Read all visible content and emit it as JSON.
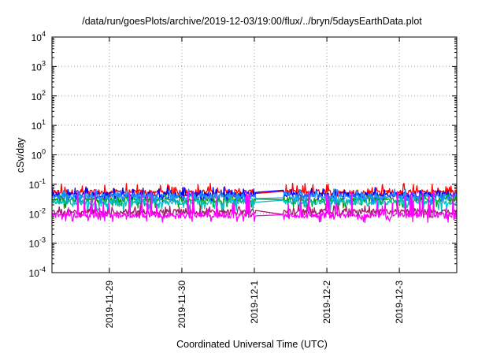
{
  "chart_data": {
    "type": "line",
    "title": "/data/run/goesPlots/archive/2019-12-03/19:00/flux/../bryn/5daysEarthData.plot",
    "xlabel": "Coordinated Universal Time (UTC)",
    "ylabel": "cSv/day",
    "y_scale": "log",
    "ylim": [
      0.0001,
      10000
    ],
    "y_ticks": [
      {
        "base": "10",
        "exp": "-4"
      },
      {
        "base": "10",
        "exp": "-3"
      },
      {
        "base": "10",
        "exp": "-2"
      },
      {
        "base": "10",
        "exp": "-1"
      },
      {
        "base": "10",
        "exp": "0"
      },
      {
        "base": "10",
        "exp": "1"
      },
      {
        "base": "10",
        "exp": "2"
      },
      {
        "base": "10",
        "exp": "3"
      },
      {
        "base": "10",
        "exp": "4"
      }
    ],
    "x_range": [
      "2019-11-28 05:00",
      "2019-12-03 19:00"
    ],
    "x_ticks": [
      "2019-11-29",
      "2019-11-30",
      "2019-12-1",
      "2019-12-2",
      "2019-12-3"
    ],
    "grid": true,
    "gap": [
      "2019-12-01 00:30",
      "2019-12-01 09:30"
    ],
    "series": [
      {
        "color": "#ff0000",
        "level": 0.055,
        "lo": 0.035,
        "hi": 0.11
      },
      {
        "color": "#0000ff",
        "level": 0.045,
        "lo": 0.025,
        "hi": 0.08
      },
      {
        "color": "#00a000",
        "level": 0.03,
        "lo": 0.015,
        "hi": 0.05
      },
      {
        "color": "#00c0c0",
        "level": 0.025,
        "lo": 0.012,
        "hi": 0.045
      },
      {
        "color": "#1e90ff",
        "level": 0.04,
        "lo": 0.02,
        "hi": 0.07
      },
      {
        "color": "#a0206a",
        "level": 0.012,
        "lo": 0.007,
        "hi": 0.02
      },
      {
        "color": "#ff00ff",
        "level": 0.009,
        "lo": 0.005,
        "hi": 0.06
      }
    ]
  }
}
